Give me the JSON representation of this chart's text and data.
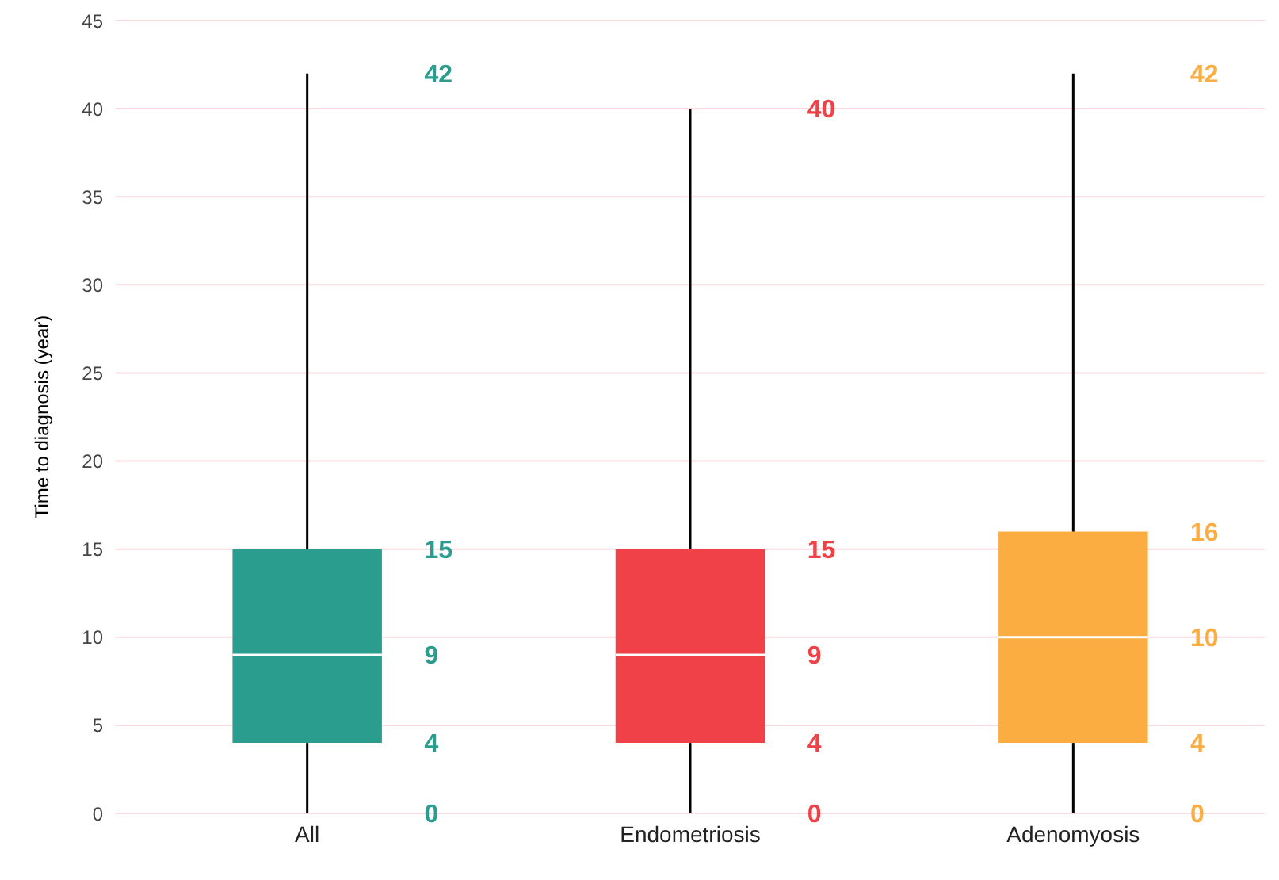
{
  "chart_data": {
    "type": "box",
    "ylabel": "Time to diagnosis (year)",
    "categories": [
      "All",
      "Endometriosis",
      "Adenomyosis"
    ],
    "boxes": [
      {
        "low": 0,
        "q1": 4,
        "median": 9,
        "q3": 15,
        "high": 42
      },
      {
        "low": 0,
        "q1": 4,
        "median": 9,
        "q3": 15,
        "high": 40
      },
      {
        "low": 0,
        "q1": 4,
        "median": 10,
        "q3": 16,
        "high": 42
      }
    ],
    "colors": [
      "#2a9d8f",
      "#ef4147",
      "#fbad41"
    ],
    "ylim": [
      0,
      45
    ],
    "yticks": [
      0,
      5,
      10,
      15,
      20,
      25,
      30,
      35,
      40,
      45
    ],
    "grid": "y",
    "annotations": [
      "42",
      "15",
      "9",
      "4",
      "0",
      "40",
      "15",
      "9",
      "4",
      "0",
      "42",
      "16",
      "10",
      "4",
      "0"
    ]
  }
}
